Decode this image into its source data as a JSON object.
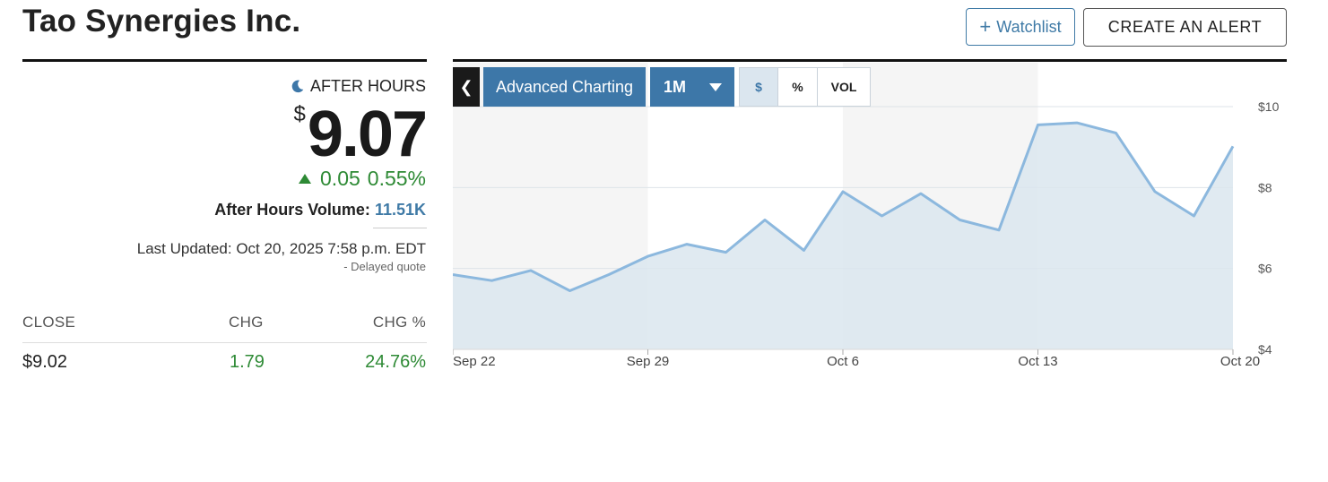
{
  "header": {
    "title": "Tao Synergies Inc.",
    "watchlist_label": "Watchlist",
    "watchlist_icon": "plus-icon",
    "alert_label": "CREATE AN ALERT"
  },
  "quote": {
    "session_label": "AFTER HOURS",
    "session_icon": "moon-icon",
    "currency_symbol": "$",
    "price": "9.07",
    "change": "0.05",
    "change_percent": "0.55%",
    "direction_icon": "up-triangle-icon",
    "volume_label": "After Hours Volume:",
    "volume_value": "11.51K",
    "last_updated": "Last Updated: Oct 20, 2025 7:58 p.m. EDT",
    "delayed_note": "-  Delayed quote"
  },
  "close_table": {
    "headers": [
      "CLOSE",
      "CHG",
      "CHG %"
    ],
    "values": [
      "$9.02",
      "1.79",
      "24.76%"
    ]
  },
  "chart_toolbar": {
    "back_icon": "chevron-left-icon",
    "advanced_label": "Advanced Charting",
    "range_label": "1M",
    "modes": [
      "$",
      "%",
      "VOL"
    ],
    "active_mode": "$"
  },
  "colors": {
    "accent": "#3d77a8",
    "positive": "#2e8a35",
    "line": "#8cb8de",
    "area": "#dbe6ef"
  },
  "chart_data": {
    "type": "area",
    "x_ticks": [
      "Sep 22",
      "Sep 29",
      "Oct 6",
      "Oct 13",
      "Oct 20"
    ],
    "y_ticks": [
      "$10",
      "$8",
      "$6",
      "$4"
    ],
    "ylim": [
      4,
      10.2
    ],
    "x_dates": [
      "Sep 22",
      "Sep 23",
      "Sep 24",
      "Sep 25",
      "Sep 26",
      "Sep 29",
      "Sep 30",
      "Oct 1",
      "Oct 2",
      "Oct 3",
      "Oct 6",
      "Oct 7",
      "Oct 8",
      "Oct 9",
      "Oct 10",
      "Oct 13",
      "Oct 14",
      "Oct 15",
      "Oct 16",
      "Oct 17",
      "Oct 20"
    ],
    "values": [
      5.85,
      5.7,
      5.95,
      5.45,
      5.85,
      6.3,
      6.6,
      6.4,
      7.2,
      6.45,
      7.9,
      7.3,
      7.85,
      7.2,
      6.95,
      9.55,
      9.6,
      9.35,
      7.9,
      7.3,
      9.02
    ],
    "grid": true,
    "legend": "none"
  }
}
